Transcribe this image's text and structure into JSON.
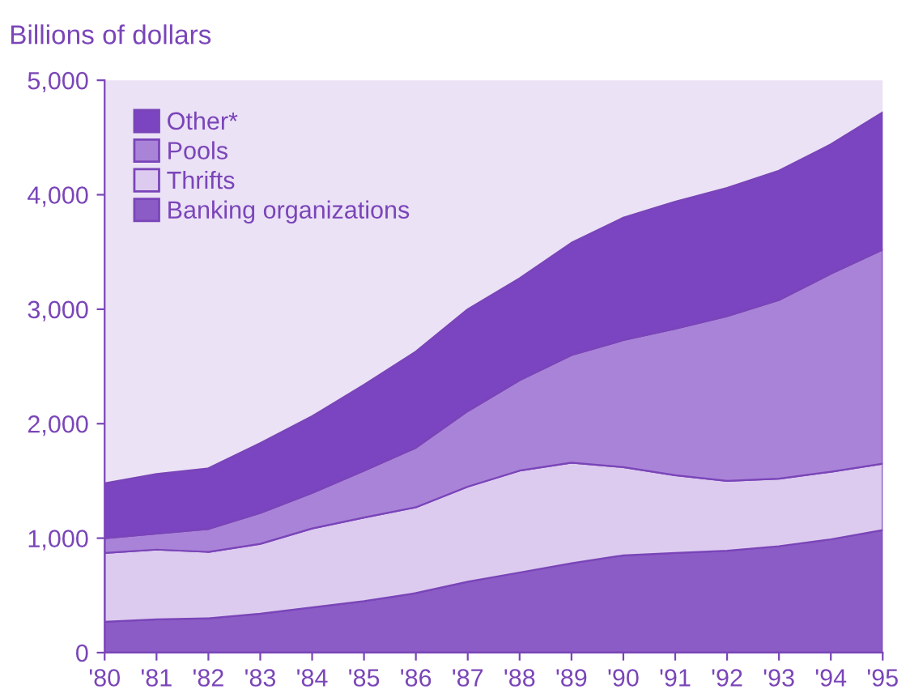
{
  "chart_data": {
    "type": "area",
    "stacked": true,
    "ylabel": "Billions of dollars",
    "categories": [
      "'80",
      "'81",
      "'82",
      "'83",
      "'84",
      "'85",
      "'86",
      "'87",
      "'88",
      "'89",
      "'90",
      "'91",
      "'92",
      "'93",
      "'94",
      "'95"
    ],
    "series": [
      {
        "name": "Banking organizations",
        "color": "#8b5cc6",
        "values": [
          270,
          290,
          300,
          340,
          395,
          450,
          520,
          620,
          700,
          780,
          850,
          870,
          890,
          930,
          990,
          1070
        ]
      },
      {
        "name": "Thrifts",
        "color": "#dccbef",
        "values": [
          600,
          610,
          580,
          610,
          690,
          730,
          750,
          830,
          890,
          880,
          770,
          680,
          610,
          590,
          590,
          580
        ]
      },
      {
        "name": "Pools",
        "color": "#a983d8",
        "values": [
          130,
          140,
          200,
          270,
          310,
          410,
          520,
          660,
          790,
          940,
          1110,
          1280,
          1440,
          1560,
          1730,
          1870
        ]
      },
      {
        "name": "Other*",
        "color": "#7b44c0",
        "values": [
          480,
          520,
          530,
          610,
          670,
          750,
          840,
          890,
          890,
          980,
          1070,
          1110,
          1120,
          1130,
          1130,
          1200
        ]
      }
    ],
    "ylim": [
      0,
      5000
    ],
    "yticks": [
      0,
      {
        "value": 1000,
        "label": "1,000"
      },
      {
        "value": 2000,
        "label": "2,000"
      },
      {
        "value": 3000,
        "label": "3,000"
      },
      {
        "value": 4000,
        "label": "4,000"
      },
      {
        "value": 5000,
        "label": "5,000"
      }
    ],
    "legend": "top left",
    "grid": false
  }
}
